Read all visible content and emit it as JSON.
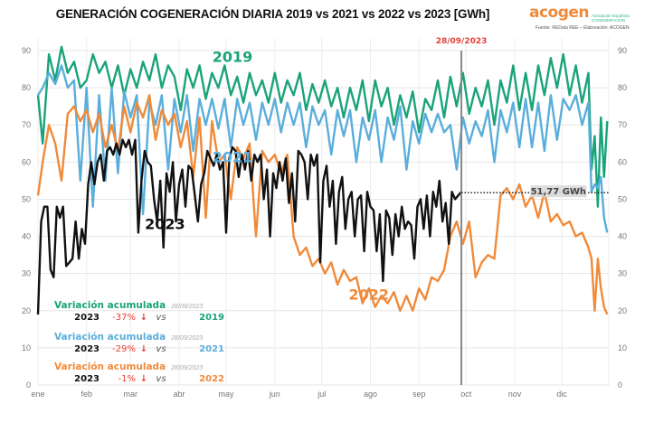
{
  "title": "GENERACIÓN COGENERACIÓN DIARIA 2019 vs 2021 vs 2022 vs 2023 [GWh]",
  "logo": {
    "word": "acogen",
    "tagline": "Asociación Española COGENERACIÓN"
  },
  "source": "Fuente: REData REE – Elaboración: ACOGEN",
  "colors": {
    "2019": "#1aa37a",
    "2021": "#5aaedb",
    "2022": "#f08a3a",
    "2023": "#111111",
    "accent_red": "#e8413a"
  },
  "chart_data": {
    "type": "line",
    "title": "GENERACIÓN COGENERACIÓN DIARIA 2019 vs 2021 vs 2022 vs 2023 [GWh]",
    "xlabel": "",
    "ylabel": "GWh",
    "x_ticks": [
      "ene",
      "feb",
      "mar",
      "abr",
      "may",
      "jun",
      "jul",
      "ago",
      "sep",
      "oct",
      "nov",
      "dic"
    ],
    "x_unit": "day_of_year",
    "xlim": [
      1,
      365
    ],
    "ylim": [
      0,
      90
    ],
    "y_ticks": [
      0,
      10,
      20,
      30,
      40,
      50,
      60,
      70,
      80,
      90
    ],
    "grid": true,
    "legend": "inline-labels",
    "series": [
      {
        "name": "2019",
        "color": "#1aa37a",
        "label_pos": [
          125,
          87
        ],
        "x": [
          1,
          4,
          8,
          12,
          16,
          20,
          24,
          28,
          32,
          36,
          40,
          44,
          48,
          52,
          56,
          60,
          64,
          68,
          72,
          76,
          80,
          84,
          88,
          92,
          96,
          100,
          104,
          108,
          112,
          116,
          120,
          124,
          128,
          132,
          136,
          140,
          144,
          148,
          152,
          156,
          160,
          164,
          168,
          172,
          176,
          180,
          184,
          188,
          192,
          196,
          200,
          204,
          208,
          212,
          216,
          220,
          224,
          228,
          232,
          236,
          240,
          244,
          248,
          252,
          256,
          260,
          264,
          268,
          272,
          276,
          280,
          284,
          288,
          292,
          296,
          300,
          304,
          308,
          312,
          316,
          320,
          324,
          328,
          332,
          336,
          340,
          344,
          348,
          352,
          354,
          356,
          358,
          360,
          362,
          364
        ],
        "y": [
          78,
          65,
          89,
          82,
          91,
          84,
          87,
          80,
          82,
          89,
          84,
          87,
          80,
          86,
          78,
          85,
          80,
          87,
          82,
          89,
          80,
          86,
          83,
          74,
          85,
          80,
          86,
          77,
          84,
          80,
          86,
          78,
          83,
          76,
          84,
          78,
          82,
          76,
          84,
          76,
          82,
          78,
          84,
          74,
          81,
          76,
          82,
          75,
          80,
          72,
          80,
          74,
          82,
          71,
          82,
          75,
          80,
          70,
          78,
          72,
          79,
          68,
          77,
          74,
          82,
          72,
          83,
          75,
          84,
          73,
          80,
          75,
          82,
          70,
          82,
          76,
          86,
          74,
          84,
          74,
          86,
          78,
          88,
          80,
          89,
          78,
          86,
          76,
          84,
          58,
          67,
          48,
          72,
          56,
          71
        ]
      },
      {
        "name": "2021",
        "color": "#5aaedb",
        "label_pos": [
          125,
          60
        ],
        "x": [
          1,
          4,
          8,
          12,
          16,
          20,
          24,
          28,
          32,
          36,
          40,
          44,
          48,
          52,
          56,
          60,
          64,
          68,
          72,
          76,
          80,
          84,
          88,
          92,
          96,
          100,
          104,
          108,
          112,
          116,
          120,
          124,
          128,
          132,
          136,
          140,
          144,
          148,
          152,
          156,
          160,
          164,
          168,
          172,
          176,
          180,
          184,
          188,
          192,
          196,
          200,
          204,
          208,
          212,
          216,
          220,
          224,
          228,
          232,
          236,
          240,
          244,
          248,
          252,
          256,
          260,
          264,
          268,
          272,
          276,
          280,
          284,
          288,
          292,
          296,
          300,
          304,
          308,
          312,
          316,
          320,
          324,
          328,
          332,
          336,
          340,
          344,
          348,
          352,
          354,
          356,
          358,
          360,
          362,
          364
        ],
        "y": [
          78,
          80,
          84,
          81,
          86,
          80,
          82,
          55,
          80,
          48,
          78,
          55,
          80,
          57,
          79,
          72,
          78,
          46,
          76,
          70,
          78,
          58,
          77,
          68,
          78,
          63,
          77,
          70,
          77,
          69,
          77,
          64,
          77,
          70,
          76,
          66,
          76,
          70,
          77,
          68,
          76,
          70,
          76,
          64,
          75,
          70,
          74,
          62,
          74,
          67,
          74,
          60,
          72,
          66,
          74,
          60,
          72,
          66,
          75,
          58,
          71,
          65,
          73,
          68,
          73,
          68,
          70,
          58,
          72,
          65,
          71,
          67,
          74,
          60,
          74,
          68,
          76,
          64,
          77,
          64,
          76,
          63,
          78,
          66,
          77,
          74,
          78,
          70,
          76,
          52,
          54,
          53,
          56,
          45,
          41
        ]
      },
      {
        "name": "2022",
        "color": "#f08a3a",
        "label_pos": [
          212,
          23
        ],
        "x": [
          1,
          4,
          8,
          12,
          16,
          20,
          24,
          28,
          32,
          36,
          40,
          44,
          48,
          52,
          56,
          60,
          64,
          68,
          72,
          76,
          80,
          84,
          88,
          92,
          96,
          100,
          104,
          108,
          112,
          116,
          120,
          124,
          128,
          132,
          136,
          140,
          144,
          148,
          152,
          156,
          160,
          164,
          168,
          172,
          176,
          180,
          184,
          188,
          192,
          196,
          200,
          204,
          208,
          212,
          216,
          220,
          224,
          228,
          232,
          236,
          240,
          244,
          248,
          252,
          256,
          260,
          264,
          268,
          272,
          276,
          280,
          284,
          288,
          292,
          296,
          300,
          304,
          308,
          312,
          316,
          320,
          324,
          328,
          332,
          336,
          340,
          344,
          348,
          352,
          354,
          356,
          358,
          360,
          362,
          364
        ],
        "y": [
          51,
          60,
          70,
          65,
          55,
          73,
          75,
          71,
          74,
          68,
          73,
          64,
          70,
          63,
          75,
          68,
          76,
          72,
          78,
          66,
          74,
          70,
          73,
          64,
          71,
          56,
          72,
          45,
          71,
          60,
          62,
          50,
          64,
          61,
          65,
          40,
          63,
          60,
          62,
          57,
          62,
          40,
          35,
          37,
          32,
          34,
          30,
          33,
          27,
          31,
          28,
          29,
          22,
          26,
          21,
          24,
          22,
          25,
          20,
          24,
          20,
          26,
          23,
          29,
          28,
          31,
          40,
          44,
          38,
          44,
          29,
          33,
          35,
          34,
          51,
          53,
          50,
          54,
          48,
          51,
          45,
          52,
          44,
          46,
          43,
          44,
          40,
          41,
          37,
          34,
          20,
          34,
          26,
          21,
          19
        ]
      },
      {
        "name": "2023",
        "color": "#111111",
        "label_pos": [
          82,
          42
        ],
        "x": [
          1,
          3,
          5,
          7,
          9,
          11,
          13,
          15,
          17,
          19,
          21,
          23,
          25,
          27,
          29,
          31,
          33,
          35,
          37,
          39,
          41,
          43,
          45,
          47,
          49,
          51,
          53,
          55,
          57,
          59,
          61,
          63,
          65,
          67,
          69,
          71,
          73,
          75,
          77,
          79,
          81,
          83,
          85,
          87,
          89,
          91,
          93,
          95,
          97,
          99,
          101,
          103,
          105,
          107,
          109,
          111,
          113,
          115,
          117,
          119,
          121,
          123,
          125,
          127,
          129,
          131,
          133,
          135,
          137,
          139,
          141,
          143,
          145,
          147,
          149,
          151,
          153,
          155,
          157,
          159,
          161,
          163,
          165,
          167,
          169,
          171,
          173,
          175,
          177,
          179,
          181,
          183,
          185,
          187,
          189,
          191,
          193,
          195,
          197,
          199,
          201,
          203,
          205,
          207,
          209,
          211,
          213,
          215,
          217,
          219,
          221,
          223,
          225,
          227,
          229,
          231,
          233,
          235,
          237,
          239,
          241,
          243,
          245,
          247,
          249,
          251,
          253,
          255,
          257,
          259,
          261,
          263,
          265,
          267,
          269,
          271
        ],
        "y": [
          19,
          44,
          48,
          48,
          31,
          29,
          48,
          45,
          48,
          32,
          33,
          34,
          44,
          34,
          42,
          38,
          54,
          60,
          54,
          60,
          62,
          55,
          63,
          64,
          62,
          65,
          62,
          66,
          64,
          66,
          62,
          66,
          41,
          55,
          63,
          60,
          59,
          50,
          44,
          55,
          37,
          57,
          52,
          60,
          44,
          54,
          58,
          48,
          59,
          58,
          51,
          44,
          54,
          57,
          63,
          61,
          59,
          62,
          58,
          60,
          41,
          61,
          64,
          63,
          56,
          62,
          58,
          63,
          55,
          62,
          60,
          62,
          50,
          58,
          40,
          57,
          53,
          60,
          55,
          61,
          49,
          57,
          44,
          63,
          62,
          60,
          50,
          62,
          59,
          62,
          33,
          55,
          59,
          48,
          55,
          38,
          52,
          56,
          42,
          50,
          52,
          40,
          50,
          51,
          36,
          52,
          48,
          47,
          36,
          46,
          28,
          47,
          45,
          35,
          46,
          40,
          48,
          42,
          44,
          43,
          34,
          48,
          50,
          42,
          51,
          40,
          52,
          48,
          55,
          44,
          49,
          38,
          52,
          50,
          51,
          52
        ]
      }
    ],
    "annotations": {
      "cutoff_date": "28/09/2023",
      "cutoff_day": 271,
      "last_value_label": "51,77 GWh",
      "last_value": 51.77
    }
  },
  "variation": {
    "title": "Variación acumulada",
    "date": "28/09/2023",
    "base_year": "2023",
    "vs_label": "vs",
    "rows": [
      {
        "pct": "-37%",
        "compare": "2019",
        "color": "#1aa37a"
      },
      {
        "pct": "-29%",
        "compare": "2021",
        "color": "#5aaedb"
      },
      {
        "pct": "-1%",
        "compare": "2022",
        "color": "#f08a3a"
      }
    ]
  },
  "icons": {
    "down_arrow": "🡫"
  }
}
